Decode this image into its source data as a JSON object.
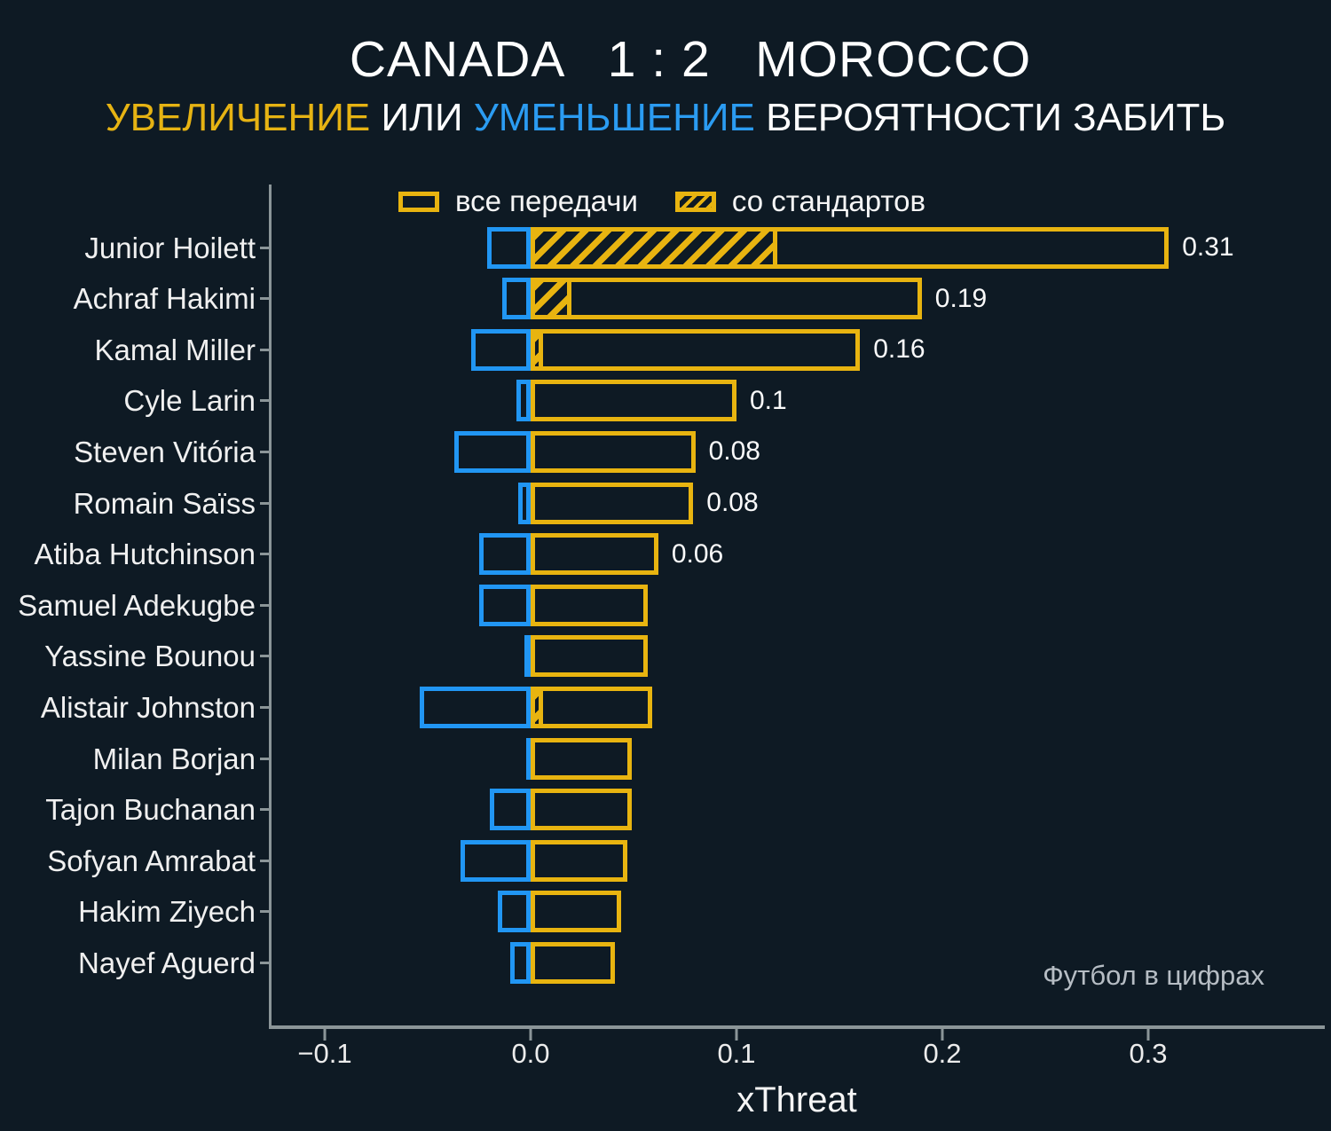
{
  "header": {
    "title": "CANADA   1 : 2   MOROCCO",
    "subtitle_parts": [
      {
        "text": "УВЕЛИЧЕНИЕ",
        "color": "#e6b313"
      },
      {
        "text": " ИЛИ ",
        "color": "#ffffff"
      },
      {
        "text": "УМЕНЬШЕНИЕ",
        "color": "#2b9cf2"
      },
      {
        "text": " ВЕРОЯТНОСТИ ЗАБИТЬ",
        "color": "#ffffff"
      }
    ]
  },
  "legend": {
    "all_passes": "все передачи",
    "set_pieces": "со стандартов"
  },
  "watermark": "Футбол в цифрах",
  "colors": {
    "background": "#0e1a24",
    "increase_yellow": "#e8b410",
    "decrease_blue": "#2196f3",
    "spine_gray": "#8b9598",
    "text_white": "#f2f2f2",
    "watermark_gray": "#b6bdc4"
  },
  "chart_data": {
    "type": "bar",
    "orientation": "horizontal",
    "title": "CANADA 1 : 2 MOROCCO — УВЕЛИЧЕНИЕ ИЛИ УМЕНЬШЕНИЕ ВЕРОЯТНОСТИ ЗАБИТЬ",
    "xlabel": "xThreat",
    "ylabel": "",
    "xlim": [
      -0.127,
      0.385
    ],
    "x_ticks": [
      -0.1,
      0.0,
      0.1,
      0.2,
      0.3
    ],
    "x_tick_labels": [
      "−0.1",
      "0.0",
      "0.1",
      "0.2",
      "0.3"
    ],
    "grid": false,
    "legend_position": "top",
    "series_legend": [
      "все передачи",
      "со стандартов"
    ],
    "players": [
      {
        "name": "Junior Hoilett",
        "increase": 0.31,
        "decrease": 0.021,
        "set_piece": 0.12,
        "label": "0.31"
      },
      {
        "name": "Achraf Hakimi",
        "increase": 0.19,
        "decrease": 0.014,
        "set_piece": 0.02,
        "label": "0.19"
      },
      {
        "name": "Kamal Miller",
        "increase": 0.16,
        "decrease": 0.029,
        "set_piece": 0.006,
        "label": "0.16"
      },
      {
        "name": "Cyle Larin",
        "increase": 0.1,
        "decrease": 0.007,
        "set_piece": 0,
        "label": "0.1"
      },
      {
        "name": "Steven Vitória",
        "increase": 0.08,
        "decrease": 0.037,
        "set_piece": 0,
        "label": "0.08"
      },
      {
        "name": "Romain Saïss",
        "increase": 0.079,
        "decrease": 0.006,
        "set_piece": 0,
        "label": "0.08"
      },
      {
        "name": "Atiba Hutchinson",
        "increase": 0.062,
        "decrease": 0.025,
        "set_piece": 0,
        "label": "0.06"
      },
      {
        "name": "Samuel Adekugbe",
        "increase": 0.057,
        "decrease": 0.025,
        "set_piece": 0,
        "label": ""
      },
      {
        "name": "Yassine Bounou",
        "increase": 0.057,
        "decrease": 0.003,
        "set_piece": 0,
        "label": ""
      },
      {
        "name": "Alistair Johnston",
        "increase": 0.059,
        "decrease": 0.054,
        "set_piece": 0.006,
        "label": ""
      },
      {
        "name": "Milan Borjan",
        "increase": 0.049,
        "decrease": 0.002,
        "set_piece": 0,
        "label": ""
      },
      {
        "name": "Tajon Buchanan",
        "increase": 0.049,
        "decrease": 0.02,
        "set_piece": 0,
        "label": ""
      },
      {
        "name": "Sofyan Amrabat",
        "increase": 0.047,
        "decrease": 0.034,
        "set_piece": 0,
        "label": ""
      },
      {
        "name": "Hakim Ziyech",
        "increase": 0.044,
        "decrease": 0.016,
        "set_piece": 0,
        "label": ""
      },
      {
        "name": "Nayef Aguerd",
        "increase": 0.041,
        "decrease": 0.01,
        "set_piece": 0,
        "label": ""
      }
    ]
  }
}
